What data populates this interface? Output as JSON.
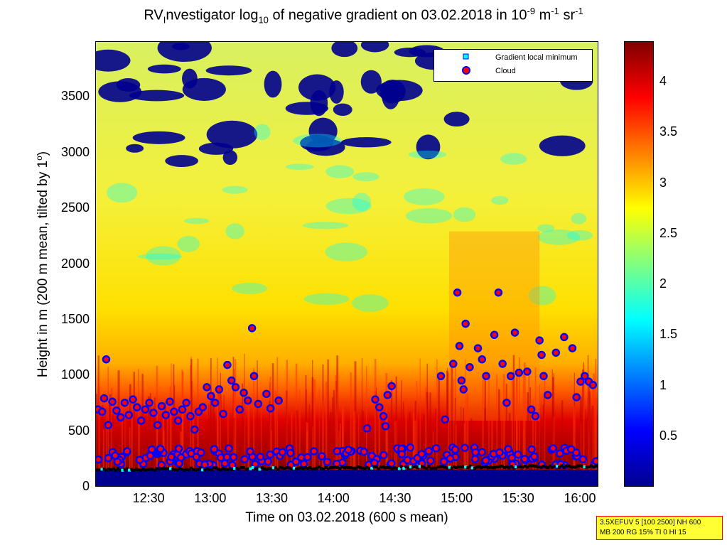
{
  "title": {
    "prefix": "RV",
    "sub1": "I",
    "part2": "nvestigator log",
    "sub2": "10",
    "part3": " of negative gradient on 03.02.2018 in 10",
    "sup1": "-9",
    "part4": " m",
    "sup2": "-1",
    "part5": " sr",
    "sup3": "-1"
  },
  "ylabel": {
    "text": "Height in m (200 m mean, tilted by 1",
    "sup": "o",
    "end": ")"
  },
  "xlabel": "Time on 03.02.2018 (600 s mean)",
  "legend": {
    "items": [
      {
        "label": "Gradient local minimum",
        "marker": "square",
        "color": "#00ffff"
      },
      {
        "label": "Cloud",
        "marker": "circle",
        "color": "#ff0000"
      }
    ]
  },
  "info_box": {
    "line1": "3.5XEFUV 5 [100 2500] NH 600",
    "line2": "MB 200 RG 15% TI 0 HI 15"
  },
  "colors": {
    "cloud_fill": "#ff0000",
    "cloud_edge": "#0000ff",
    "gradient_min": "#00ffff",
    "colormap": [
      "#00008f",
      "#0000ff",
      "#0080ff",
      "#00ffff",
      "#80ff80",
      "#ffff00",
      "#ff8000",
      "#ff0000",
      "#800000"
    ]
  },
  "chart_data": {
    "type": "heatmap",
    "colormap": "jet",
    "x_range_hours": [
      "12:04",
      "16:09"
    ],
    "xticks": [
      "12:30",
      "13:00",
      "13:30",
      "14:00",
      "14:30",
      "15:00",
      "15:30",
      "16:00"
    ],
    "ylim": [
      0,
      4000
    ],
    "yticks": [
      0,
      500,
      1000,
      1500,
      2000,
      2500,
      3000,
      3500
    ],
    "colorbar": {
      "clim": [
        0,
        4.4
      ],
      "ticks": [
        0.5,
        1,
        1.5,
        2,
        2.5,
        3,
        3.5,
        4
      ]
    },
    "cloud_points": [
      {
        "t": "12:09",
        "h": 1150
      },
      {
        "t": "12:08",
        "h": 800
      },
      {
        "t": "12:05",
        "h": 700
      },
      {
        "t": "12:07",
        "h": 680
      },
      {
        "t": "12:10",
        "h": 560
      },
      {
        "t": "12:12",
        "h": 770
      },
      {
        "t": "12:14",
        "h": 690
      },
      {
        "t": "12:16",
        "h": 630
      },
      {
        "t": "12:18",
        "h": 760
      },
      {
        "t": "12:20",
        "h": 650
      },
      {
        "t": "12:22",
        "h": 790
      },
      {
        "t": "12:24",
        "h": 720
      },
      {
        "t": "12:26",
        "h": 600
      },
      {
        "t": "12:28",
        "h": 700
      },
      {
        "t": "12:30",
        "h": 760
      },
      {
        "t": "12:32",
        "h": 670
      },
      {
        "t": "12:34",
        "h": 560
      },
      {
        "t": "12:36",
        "h": 730
      },
      {
        "t": "12:38",
        "h": 650
      },
      {
        "t": "12:40",
        "h": 770
      },
      {
        "t": "12:42",
        "h": 680
      },
      {
        "t": "12:44",
        "h": 600
      },
      {
        "t": "12:46",
        "h": 700
      },
      {
        "t": "12:48",
        "h": 760
      },
      {
        "t": "12:50",
        "h": 640
      },
      {
        "t": "12:52",
        "h": 520
      },
      {
        "t": "12:54",
        "h": 680
      },
      {
        "t": "12:56",
        "h": 720
      },
      {
        "t": "12:58",
        "h": 900
      },
      {
        "t": "13:00",
        "h": 820
      },
      {
        "t": "13:02",
        "h": 760
      },
      {
        "t": "13:04",
        "h": 880
      },
      {
        "t": "13:06",
        "h": 660
      },
      {
        "t": "13:08",
        "h": 1100
      },
      {
        "t": "13:10",
        "h": 960
      },
      {
        "t": "13:12",
        "h": 900
      },
      {
        "t": "13:14",
        "h": 700
      },
      {
        "t": "13:16",
        "h": 850
      },
      {
        "t": "13:18",
        "h": 780
      },
      {
        "t": "13:20",
        "h": 1430
      },
      {
        "t": "13:21",
        "h": 1000
      },
      {
        "t": "13:23",
        "h": 750
      },
      {
        "t": "13:27",
        "h": 840
      },
      {
        "t": "13:29",
        "h": 710
      },
      {
        "t": "13:33",
        "h": 780
      },
      {
        "t": "14:20",
        "h": 790
      },
      {
        "t": "14:22",
        "h": 720
      },
      {
        "t": "14:24",
        "h": 640
      },
      {
        "t": "14:26",
        "h": 830
      },
      {
        "t": "14:28",
        "h": 910
      },
      {
        "t": "14:25",
        "h": 550
      },
      {
        "t": "14:16",
        "h": 530
      },
      {
        "t": "14:52",
        "h": 1000
      },
      {
        "t": "14:54",
        "h": 610
      },
      {
        "t": "14:58",
        "h": 1110
      },
      {
        "t": "15:00",
        "h": 1750
      },
      {
        "t": "15:01",
        "h": 1270
      },
      {
        "t": "15:02",
        "h": 960
      },
      {
        "t": "15:03",
        "h": 880
      },
      {
        "t": "15:04",
        "h": 1470
      },
      {
        "t": "15:06",
        "h": 1080
      },
      {
        "t": "15:10",
        "h": 1250
      },
      {
        "t": "15:12",
        "h": 1150
      },
      {
        "t": "15:14",
        "h": 1000
      },
      {
        "t": "15:18",
        "h": 1370
      },
      {
        "t": "15:20",
        "h": 1750
      },
      {
        "t": "15:22",
        "h": 1110
      },
      {
        "t": "15:24",
        "h": 760
      },
      {
        "t": "15:26",
        "h": 1000
      },
      {
        "t": "15:28",
        "h": 1390
      },
      {
        "t": "15:30",
        "h": 1030
      },
      {
        "t": "15:34",
        "h": 1040
      },
      {
        "t": "15:36",
        "h": 700
      },
      {
        "t": "15:38",
        "h": 640
      },
      {
        "t": "15:40",
        "h": 1320
      },
      {
        "t": "15:41",
        "h": 1190
      },
      {
        "t": "15:42",
        "h": 1000
      },
      {
        "t": "15:44",
        "h": 830
      },
      {
        "t": "15:48",
        "h": 1210
      },
      {
        "t": "15:52",
        "h": 1350
      },
      {
        "t": "15:56",
        "h": 1250
      },
      {
        "t": "15:58",
        "h": 810
      },
      {
        "t": "16:00",
        "h": 950
      },
      {
        "t": "16:02",
        "h": 1000
      },
      {
        "t": "16:04",
        "h": 950
      },
      {
        "t": "16:06",
        "h": 920
      }
    ],
    "cloud_base_band": {
      "h_min": 200,
      "h_max": 360
    },
    "gradient_min_band": {
      "h_min": 150,
      "h_max": 210
    }
  }
}
